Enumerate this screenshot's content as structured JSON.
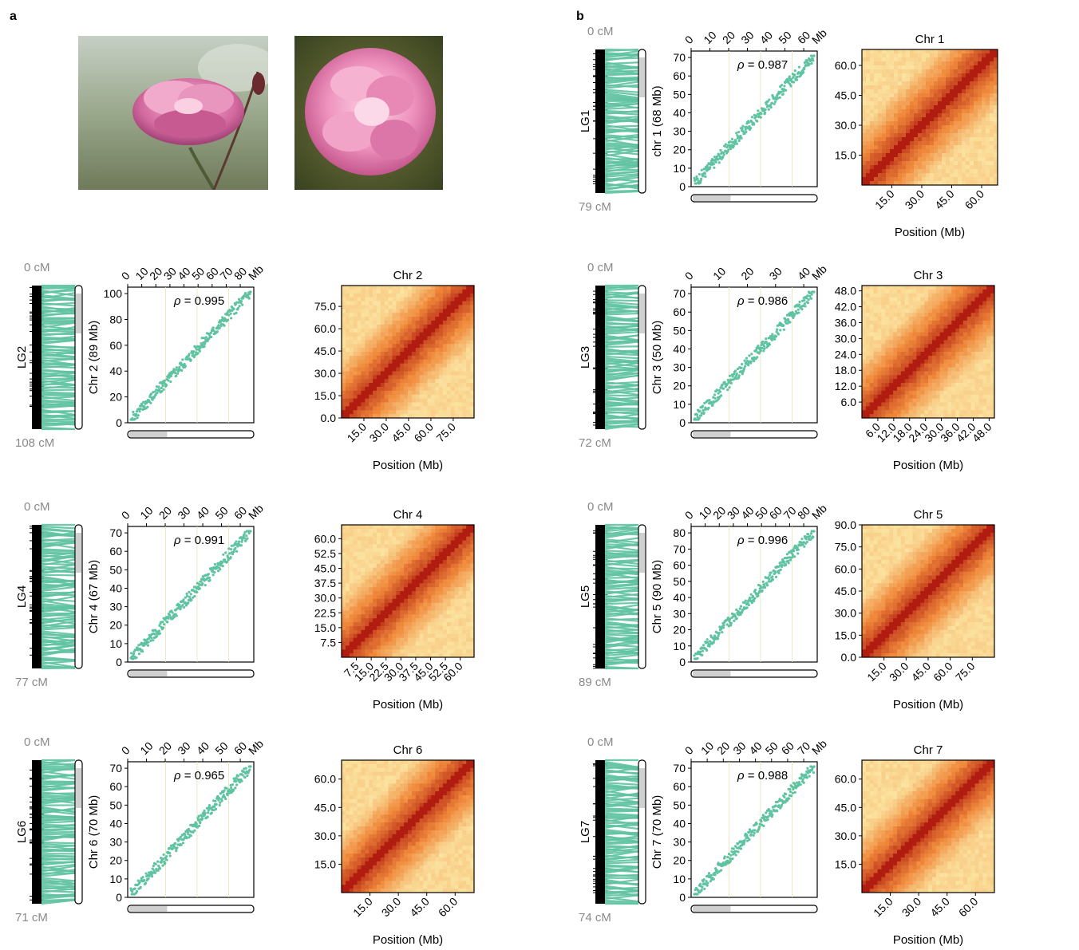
{
  "figure": {
    "panel_a_label": "a",
    "panel_b_label": "b"
  },
  "photos": [
    {
      "subject": "rose-flower-side-view"
    },
    {
      "subject": "rose-flower-top-view"
    }
  ],
  "chromosomes": [
    {
      "lg_label": "LG1",
      "cm_start": "0 cM",
      "cm_end": "79 cM",
      "chr_axis_label": "chr 1 (68 Mb)",
      "hic_title": "Chr 1",
      "rho_text": " = 0.987",
      "phys_ticks": [
        "0",
        "10",
        "20",
        "30",
        "40",
        "50",
        "60"
      ],
      "phys_unit": "Mb",
      "gen_ticks": [
        "0",
        "10",
        "20",
        "30",
        "40",
        "50",
        "60",
        "70"
      ],
      "hic_y_ticks": [
        "15.0",
        "30.0",
        "45.0",
        "60.0"
      ],
      "hic_x_ticks": [
        "15.0",
        "30.0",
        "45.0",
        "60.0"
      ],
      "hic_xlabel": "Position (Mb)",
      "hic_max": 68
    },
    {
      "lg_label": "LG2",
      "cm_start": "0 cM",
      "cm_end": "108 cM",
      "chr_axis_label": "Chr 2 (89 Mb)",
      "hic_title": "Chr 2",
      "rho_text": " = 0.995",
      "phys_ticks": [
        "0",
        "10",
        "20",
        "30",
        "40",
        "50",
        "60",
        "70",
        "80"
      ],
      "phys_unit": "Mb",
      "gen_ticks": [
        "0",
        "20",
        "40",
        "60",
        "80",
        "100"
      ],
      "hic_y_ticks": [
        "0.0",
        "15.0",
        "30.0",
        "45.0",
        "60.0",
        "75.0"
      ],
      "hic_x_ticks": [
        "15.0",
        "30.0",
        "45.0",
        "60.0",
        "75.0"
      ],
      "hic_xlabel": "Position (Mb)",
      "hic_max": 89
    },
    {
      "lg_label": "LG3",
      "cm_start": "0 cM",
      "cm_end": "72 cM",
      "chr_axis_label": "Chr 3 (50 Mb)",
      "hic_title": "Chr 3",
      "rho_text": " = 0.986",
      "phys_ticks": [
        "0",
        "10",
        "20",
        "30",
        "40"
      ],
      "phys_unit": "Mb",
      "gen_ticks": [
        "0",
        "10",
        "20",
        "30",
        "40",
        "50",
        "60",
        "70"
      ],
      "hic_y_ticks": [
        "6.0",
        "12.0",
        "18.0",
        "24.0",
        "30.0",
        "36.0",
        "42.0",
        "48.0"
      ],
      "hic_x_ticks": [
        "6.0",
        "12.0",
        "18.0",
        "24.0",
        "30.0",
        "36.0",
        "42.0",
        "48.0"
      ],
      "hic_xlabel": "Position (Mb)",
      "hic_max": 50
    },
    {
      "lg_label": "LG4",
      "cm_start": "0 cM",
      "cm_end": "77 cM",
      "chr_axis_label": "Chr 4 (67 Mb)",
      "hic_title": "Chr 4",
      "rho_text": " = 0.991",
      "phys_ticks": [
        "0",
        "10",
        "20",
        "30",
        "40",
        "50",
        "60"
      ],
      "phys_unit": "Mb",
      "gen_ticks": [
        "0",
        "10",
        "20",
        "30",
        "40",
        "50",
        "60",
        "70"
      ],
      "hic_y_ticks": [
        "7.5",
        "15.0",
        "22.5",
        "30.0",
        "37.5",
        "45.0",
        "52.5",
        "60.0"
      ],
      "hic_x_ticks": [
        "7.5",
        "15.0",
        "22.5",
        "30.0",
        "37.5",
        "45.0",
        "52.5",
        "60.0"
      ],
      "hic_xlabel": "Position (Mb)",
      "hic_max": 67
    },
    {
      "lg_label": "LG5",
      "cm_start": "0 cM",
      "cm_end": "89 cM",
      "chr_axis_label": "Chr 5 (90 Mb)",
      "hic_title": "Chr 5",
      "rho_text": " = 0.996",
      "phys_ticks": [
        "0",
        "10",
        "20",
        "30",
        "40",
        "50",
        "60",
        "70",
        "80"
      ],
      "phys_unit": "Mb",
      "gen_ticks": [
        "0",
        "10",
        "20",
        "30",
        "40",
        "50",
        "60",
        "70",
        "80"
      ],
      "hic_y_ticks": [
        "0.0",
        "15.0",
        "30.0",
        "45.0",
        "60.0",
        "75.0",
        "90.0"
      ],
      "hic_x_ticks": [
        "15.0",
        "30.0",
        "45.0",
        "60.0",
        "75.0"
      ],
      "hic_xlabel": "Position (Mb)",
      "hic_max": 90
    },
    {
      "lg_label": "LG6",
      "cm_start": "0 cM",
      "cm_end": "71 cM",
      "chr_axis_label": "Chr 6 (70 Mb)",
      "hic_title": "Chr 6",
      "rho_text": " = 0.965",
      "phys_ticks": [
        "0",
        "10",
        "20",
        "30",
        "40",
        "50",
        "60"
      ],
      "phys_unit": "Mb",
      "gen_ticks": [
        "0",
        "10",
        "20",
        "30",
        "40",
        "50",
        "60",
        "70"
      ],
      "hic_y_ticks": [
        "15.0",
        "30.0",
        "45.0",
        "60.0"
      ],
      "hic_x_ticks": [
        "15.0",
        "30.0",
        "45.0",
        "60.0"
      ],
      "hic_xlabel": "Position (Mb)",
      "hic_max": 70
    },
    {
      "lg_label": "LG7",
      "cm_start": "0 cM",
      "cm_end": "74 cM",
      "chr_axis_label": "Chr 7 (70 Mb)",
      "hic_title": "Chr 7",
      "rho_text": " = 0.988",
      "phys_ticks": [
        "0",
        "10",
        "20",
        "30",
        "40",
        "50",
        "60",
        "70"
      ],
      "phys_unit": "Mb",
      "gen_ticks": [
        "0",
        "10",
        "20",
        "30",
        "40",
        "50",
        "60",
        "70"
      ],
      "hic_y_ticks": [
        "15.0",
        "30.0",
        "45.0",
        "60.0"
      ],
      "hic_x_ticks": [
        "15.0",
        "30.0",
        "45.0",
        "60.0"
      ],
      "hic_xlabel": "Position (Mb)",
      "hic_max": 70
    }
  ],
  "colors": {
    "marker_green": "#5fc3a1",
    "hic_low": "#fbe3a0",
    "hic_mid": "#f08a3c",
    "hic_high": "#b01d10",
    "label_gray": "#8a8a8a",
    "chrom_fill_gray": "#d0d0d0"
  }
}
